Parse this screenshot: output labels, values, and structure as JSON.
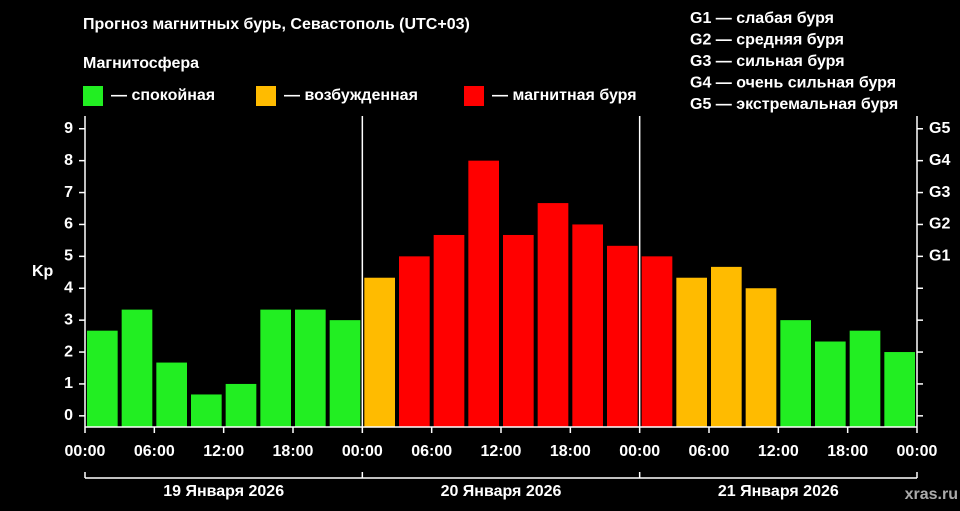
{
  "chart_data": {
    "type": "bar",
    "title": "Прогноз магнитных бурь, Севастополь (UTC+03)",
    "legend_title": "Магнитосфера",
    "legend": [
      {
        "label": "— спокойная",
        "color": "#22ee22"
      },
      {
        "label": "— возбужденная",
        "color": "#ffbb00"
      },
      {
        "label": "— магнитная буря",
        "color": "#ff0000"
      }
    ],
    "scale_notes": [
      "G1 — слабая буря",
      "G2 — средняя буря",
      "G3 — сильная буря",
      "G4 — очень сильная буря",
      "G5 — экстремальная буря"
    ],
    "ylabel": "Kp",
    "values": [
      2.67,
      3.33,
      1.67,
      0.67,
      1,
      3.33,
      3.33,
      3,
      4.33,
      5,
      5.67,
      8,
      5.67,
      6.67,
      6,
      5.33,
      5,
      4.33,
      4.67,
      4,
      3,
      2.33,
      2.67,
      2
    ],
    "colors": [
      "#22ee22",
      "#22ee22",
      "#22ee22",
      "#22ee22",
      "#22ee22",
      "#22ee22",
      "#22ee22",
      "#22ee22",
      "#ffbb00",
      "#ff0000",
      "#ff0000",
      "#ff0000",
      "#ff0000",
      "#ff0000",
      "#ff0000",
      "#ff0000",
      "#ff0000",
      "#ffbb00",
      "#ffbb00",
      "#ffbb00",
      "#22ee22",
      "#22ee22",
      "#22ee22",
      "#22ee22"
    ],
    "x_tick_labels": [
      "00:00",
      "06:00",
      "12:00",
      "18:00",
      "00:00",
      "06:00",
      "12:00",
      "18:00",
      "00:00",
      "06:00",
      "12:00",
      "18:00",
      "00:00"
    ],
    "days": [
      "19 Января 2026",
      "20 Января 2026",
      "21 Января 2026"
    ],
    "ylim": [
      -0.35,
      9.4
    ],
    "yticks": [
      0,
      1,
      2,
      3,
      4,
      5,
      6,
      7,
      8,
      9
    ],
    "y2ticks": [
      {
        "value": 5,
        "label": "G1"
      },
      {
        "value": 6,
        "label": "G2"
      },
      {
        "value": 7,
        "label": "G3"
      },
      {
        "value": 8,
        "label": "G4"
      },
      {
        "value": 9,
        "label": "G5"
      }
    ],
    "watermark": "xras.ru"
  }
}
